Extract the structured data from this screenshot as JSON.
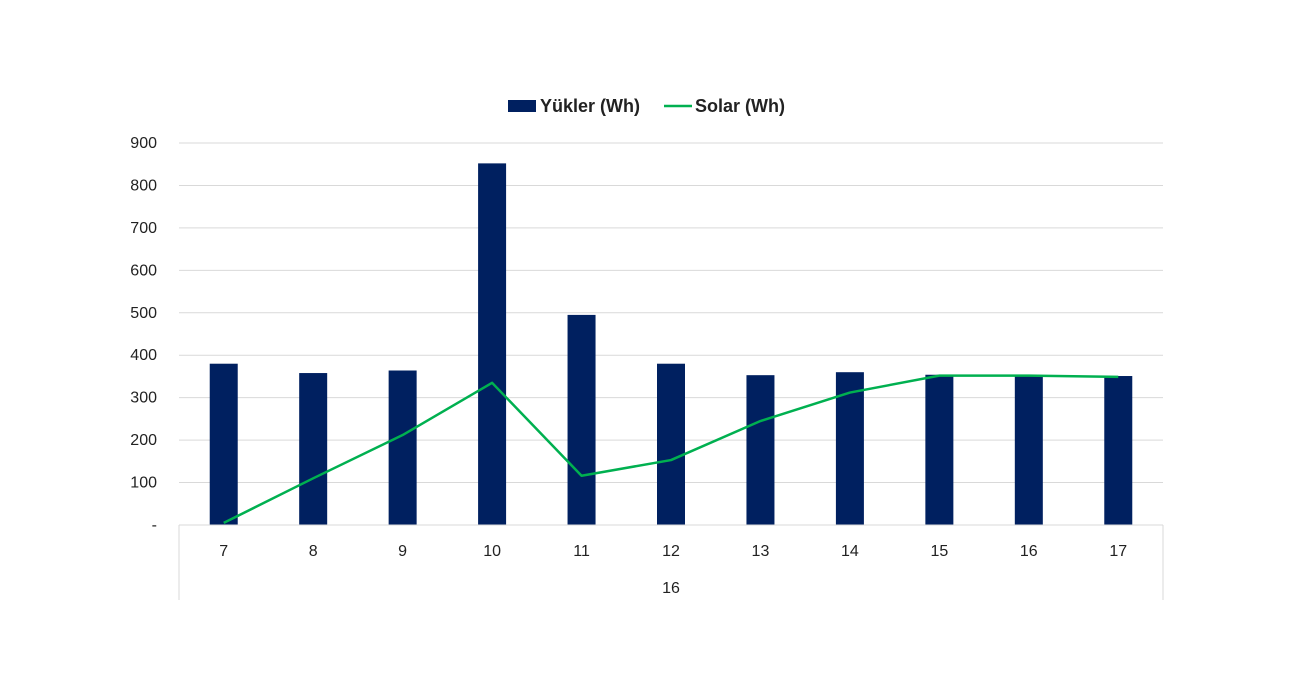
{
  "chart_data": {
    "type": "bar",
    "categories": [
      "7",
      "8",
      "9",
      "10",
      "11",
      "12",
      "13",
      "14",
      "15",
      "16",
      "17"
    ],
    "group_label": "16",
    "series": [
      {
        "name": "Yükler (Wh)",
        "kind": "bar",
        "color": "#002060",
        "values": [
          380,
          358,
          364,
          852,
          495,
          380,
          353,
          360,
          354,
          352,
          351
        ]
      },
      {
        "name": "Solar (Wh)",
        "kind": "line",
        "color": "#00b050",
        "values": [
          5,
          110,
          212,
          335,
          116,
          153,
          245,
          312,
          352,
          352,
          349
        ]
      }
    ],
    "y_ticks": [
      "-",
      "100",
      "200",
      "300",
      "400",
      "500",
      "600",
      "700",
      "800",
      "900"
    ],
    "ylim": [
      0,
      900
    ],
    "grid": true,
    "legend_position": "top-center"
  }
}
